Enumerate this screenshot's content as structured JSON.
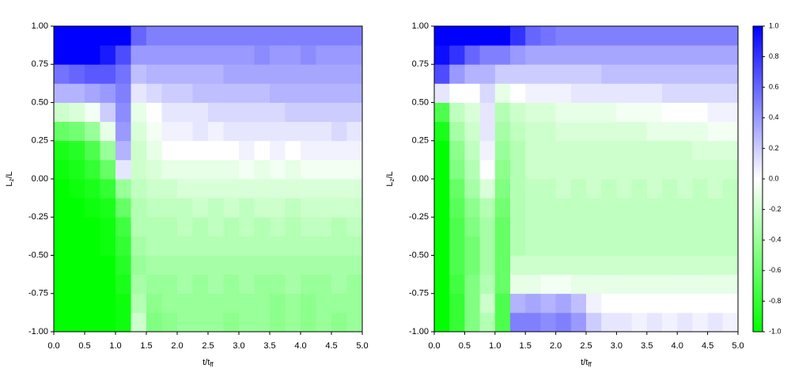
{
  "chart_data": [
    {
      "type": "heatmap",
      "xlabel": {
        "text": "t/t",
        "sub": "ff"
      },
      "ylabel": {
        "text": "L",
        "sub": "z",
        "tail": "/L"
      },
      "xbins": [
        0,
        0.25,
        0.5,
        0.75,
        1,
        1.25,
        1.5,
        1.75,
        2,
        2.25,
        2.5,
        2.75,
        3,
        3.25,
        3.5,
        3.75,
        4,
        4.25,
        4.5,
        4.75,
        5
      ],
      "ybins": [
        -1,
        -0.875,
        -0.75,
        -0.625,
        -0.5,
        -0.375,
        -0.25,
        -0.125,
        0,
        0.125,
        0.25,
        0.375,
        0.5,
        0.625,
        0.75,
        0.875,
        1
      ],
      "xlim": [
        0,
        5
      ],
      "ylim": [
        -1,
        1
      ],
      "xticks": [
        {
          "value": 0,
          "label": "0.0"
        },
        0.5,
        {
          "value": 1,
          "label": "1.0"
        },
        1.5,
        {
          "value": 2,
          "label": "2.0"
        },
        2.5,
        {
          "value": 3,
          "label": "3.0"
        },
        3.5,
        {
          "value": 4,
          "label": "4.0"
        },
        4.5,
        {
          "value": 5,
          "label": "5.0"
        }
      ],
      "yticks": [
        {
          "value": -1,
          "label": "-1.00"
        },
        -0.75,
        {
          "value": -0.5,
          "label": "-0.50"
        },
        -0.25,
        {
          "value": 0,
          "label": "0.00"
        },
        0.25,
        {
          "value": 0.5,
          "label": "0.50"
        },
        0.75,
        {
          "value": 1,
          "label": "1.00"
        }
      ],
      "colormap": [
        "#00ff00",
        "#ffffff",
        "#0000ff"
      ],
      "zlim": [
        -1,
        1
      ],
      "values": [
        [
          -1,
          -1,
          -1,
          -1,
          -0.95,
          -0.2,
          -0.5,
          -0.45,
          -0.4,
          -0.4,
          -0.4,
          -0.45,
          -0.4,
          -0.4,
          -0.45,
          -0.4,
          -0.45,
          -0.4,
          -0.45,
          -0.4
        ],
        [
          -1,
          -1,
          -1,
          -1,
          -0.95,
          -0.3,
          -0.45,
          -0.4,
          -0.4,
          -0.4,
          -0.4,
          -0.4,
          -0.4,
          -0.4,
          -0.45,
          -0.4,
          -0.45,
          -0.4,
          -0.4,
          -0.4
        ],
        [
          -1,
          -1,
          -1,
          -1,
          -0.9,
          -0.35,
          -0.4,
          -0.4,
          -0.35,
          -0.4,
          -0.35,
          -0.4,
          -0.35,
          -0.4,
          -0.4,
          -0.35,
          -0.4,
          -0.4,
          -0.35,
          -0.4
        ],
        [
          -1,
          -1,
          -1,
          -1,
          -0.85,
          -0.4,
          -0.35,
          -0.35,
          -0.35,
          -0.35,
          -0.35,
          -0.35,
          -0.35,
          -0.35,
          -0.35,
          -0.35,
          -0.35,
          -0.35,
          -0.35,
          -0.35
        ],
        [
          -1,
          -1,
          -1,
          -0.95,
          -0.8,
          -0.35,
          -0.3,
          -0.3,
          -0.3,
          -0.3,
          -0.3,
          -0.3,
          -0.3,
          -0.3,
          -0.3,
          -0.3,
          -0.3,
          -0.3,
          -0.3,
          -0.3
        ],
        [
          -1,
          -1,
          -1,
          -0.95,
          -0.75,
          -0.3,
          -0.3,
          -0.3,
          -0.25,
          -0.3,
          -0.25,
          -0.3,
          -0.25,
          -0.3,
          -0.25,
          -0.3,
          -0.25,
          -0.25,
          -0.3,
          -0.25
        ],
        [
          -1,
          -1,
          -0.95,
          -0.9,
          -0.6,
          -0.3,
          -0.25,
          -0.25,
          -0.25,
          -0.2,
          -0.25,
          -0.2,
          -0.25,
          -0.2,
          -0.2,
          -0.25,
          -0.2,
          -0.2,
          -0.2,
          -0.2
        ],
        [
          -1,
          -0.95,
          -0.9,
          -0.8,
          -0.4,
          -0.25,
          -0.2,
          -0.2,
          -0.15,
          -0.15,
          -0.15,
          -0.15,
          -0.15,
          -0.15,
          -0.15,
          -0.15,
          -0.15,
          -0.15,
          -0.15,
          -0.15
        ],
        [
          -0.95,
          -0.9,
          -0.8,
          -0.6,
          0.1,
          -0.2,
          -0.15,
          -0.1,
          -0.1,
          -0.1,
          -0.1,
          -0.1,
          -0.05,
          -0.1,
          -0.05,
          -0.1,
          -0.05,
          -0.05,
          -0.05,
          -0.05
        ],
        [
          -0.9,
          -0.85,
          -0.7,
          -0.4,
          0.3,
          -0.2,
          -0.1,
          0,
          0,
          0,
          0,
          0,
          0.05,
          0,
          0.05,
          0,
          0.05,
          0.05,
          0.05,
          0.05
        ],
        [
          -0.6,
          -0.55,
          -0.4,
          -0.1,
          0.4,
          -0.15,
          -0.05,
          0.05,
          0.05,
          0.1,
          0.05,
          0.1,
          0.1,
          0.1,
          0.1,
          0.1,
          0.1,
          0.1,
          0.15,
          0.1
        ],
        [
          -0.2,
          -0.15,
          -0.05,
          0.2,
          0.45,
          -0.1,
          0,
          0.1,
          0.1,
          0.1,
          0.15,
          0.15,
          0.15,
          0.15,
          0.15,
          0.2,
          0.2,
          0.2,
          0.2,
          0.2
        ],
        [
          0.3,
          0.3,
          0.35,
          0.4,
          0.5,
          0.1,
          0.15,
          0.2,
          0.2,
          0.25,
          0.25,
          0.25,
          0.25,
          0.25,
          0.3,
          0.3,
          0.3,
          0.3,
          0.3,
          0.3
        ],
        [
          0.55,
          0.6,
          0.65,
          0.65,
          0.55,
          0.25,
          0.3,
          0.3,
          0.3,
          0.3,
          0.3,
          0.35,
          0.35,
          0.35,
          0.35,
          0.35,
          0.35,
          0.35,
          0.35,
          0.35
        ],
        [
          1,
          1,
          1,
          0.9,
          0.7,
          0.4,
          0.4,
          0.4,
          0.4,
          0.4,
          0.4,
          0.4,
          0.4,
          0.45,
          0.4,
          0.4,
          0.45,
          0.4,
          0.4,
          0.4
        ],
        [
          1,
          1,
          1,
          1,
          1,
          0.6,
          0.5,
          0.5,
          0.5,
          0.5,
          0.5,
          0.5,
          0.5,
          0.5,
          0.5,
          0.5,
          0.5,
          0.5,
          0.5,
          0.5
        ]
      ]
    },
    {
      "type": "heatmap",
      "xlabel": {
        "text": "t/t",
        "sub": "ff"
      },
      "ylabel": {
        "text": "L",
        "sub": "z",
        "tail": "/L"
      },
      "xbins": [
        0,
        0.25,
        0.5,
        0.75,
        1,
        1.25,
        1.5,
        1.75,
        2,
        2.25,
        2.5,
        2.75,
        3,
        3.25,
        3.5,
        3.75,
        4,
        4.25,
        4.5,
        4.75,
        5
      ],
      "ybins": [
        -1,
        -0.875,
        -0.75,
        -0.625,
        -0.5,
        -0.375,
        -0.25,
        -0.125,
        0,
        0.125,
        0.25,
        0.375,
        0.5,
        0.625,
        0.75,
        0.875,
        1
      ],
      "xlim": [
        0,
        5
      ],
      "ylim": [
        -1,
        1
      ],
      "xticks": [
        {
          "value": 0,
          "label": "0.0"
        },
        0.5,
        {
          "value": 1,
          "label": "1.0"
        },
        1.5,
        {
          "value": 2,
          "label": "2.0"
        },
        2.5,
        {
          "value": 3,
          "label": "3.0"
        },
        3.5,
        {
          "value": 4,
          "label": "4.0"
        },
        4.5,
        {
          "value": 5,
          "label": "5.0"
        }
      ],
      "yticks": [
        {
          "value": -1,
          "label": "-1.00"
        },
        -0.75,
        {
          "value": -0.5,
          "label": "-0.50"
        },
        -0.25,
        {
          "value": 0,
          "label": "0.00"
        },
        0.25,
        {
          "value": 0.5,
          "label": "0.50"
        },
        0.75,
        {
          "value": 1,
          "label": "1.00"
        }
      ],
      "colormap": [
        "#00ff00",
        "#ffffff",
        "#0000ff"
      ],
      "zlim": [
        -1,
        1
      ],
      "colorbar": {
        "ticks": [
          {
            "value": -1,
            "label": "-1.0"
          },
          -0.8,
          -0.6,
          -0.4,
          -0.2,
          {
            "value": 0,
            "label": "0.0"
          },
          0.2,
          0.4,
          0.6,
          0.8,
          {
            "value": 1,
            "label": "1.0"
          }
        ]
      },
      "values": [
        [
          -1,
          -0.8,
          -0.5,
          -0.3,
          -0.7,
          0.5,
          0.5,
          0.45,
          0.5,
          0.4,
          0.2,
          0.1,
          0.1,
          0.05,
          0.1,
          0.05,
          0.1,
          0.05,
          0.1,
          0.05
        ],
        [
          -1,
          -0.8,
          -0.5,
          -0.2,
          -0.7,
          0.3,
          0.35,
          0.3,
          0.35,
          0.25,
          0.05,
          0,
          0,
          0,
          0,
          0,
          0,
          0,
          0,
          0
        ],
        [
          -1,
          -0.75,
          -0.5,
          -0.3,
          -0.6,
          -0.1,
          -0.1,
          -0.05,
          -0.05,
          -0.1,
          -0.1,
          -0.1,
          -0.1,
          -0.1,
          -0.1,
          -0.1,
          -0.1,
          -0.1,
          -0.1,
          -0.1
        ],
        [
          -1,
          -0.7,
          -0.55,
          -0.35,
          -0.6,
          -0.2,
          -0.2,
          -0.2,
          -0.2,
          -0.2,
          -0.2,
          -0.2,
          -0.2,
          -0.2,
          -0.2,
          -0.2,
          -0.2,
          -0.2,
          -0.2,
          -0.2
        ],
        [
          -1,
          -0.7,
          -0.55,
          -0.35,
          -0.6,
          -0.3,
          -0.25,
          -0.25,
          -0.25,
          -0.25,
          -0.25,
          -0.25,
          -0.25,
          -0.25,
          -0.25,
          -0.25,
          -0.25,
          -0.25,
          -0.25,
          -0.25
        ],
        [
          -1,
          -0.7,
          -0.5,
          -0.35,
          -0.6,
          -0.3,
          -0.25,
          -0.25,
          -0.25,
          -0.25,
          -0.25,
          -0.25,
          -0.25,
          -0.25,
          -0.25,
          -0.25,
          -0.25,
          -0.25,
          -0.25,
          -0.25
        ],
        [
          -1,
          -0.65,
          -0.45,
          -0.3,
          -0.55,
          -0.3,
          -0.25,
          -0.25,
          -0.25,
          -0.25,
          -0.25,
          -0.25,
          -0.25,
          -0.25,
          -0.25,
          -0.25,
          -0.25,
          -0.25,
          -0.25,
          -0.25
        ],
        [
          -1,
          -0.6,
          -0.35,
          -0.15,
          -0.5,
          -0.3,
          -0.25,
          -0.25,
          -0.2,
          -0.25,
          -0.2,
          -0.25,
          -0.2,
          -0.25,
          -0.2,
          -0.25,
          -0.2,
          -0.25,
          -0.2,
          -0.25
        ],
        [
          -1,
          -0.5,
          -0.3,
          0,
          -0.45,
          -0.3,
          -0.2,
          -0.2,
          -0.2,
          -0.2,
          -0.2,
          -0.2,
          -0.2,
          -0.2,
          -0.2,
          -0.2,
          -0.2,
          -0.2,
          -0.2,
          -0.2
        ],
        [
          -1,
          -0.45,
          -0.25,
          0.05,
          -0.4,
          -0.3,
          -0.2,
          -0.2,
          -0.2,
          -0.2,
          -0.2,
          -0.2,
          -0.2,
          -0.2,
          -0.2,
          -0.2,
          -0.2,
          -0.15,
          -0.15,
          -0.15
        ],
        [
          -0.9,
          -0.35,
          -0.2,
          0.1,
          -0.35,
          -0.25,
          -0.2,
          -0.2,
          -0.15,
          -0.15,
          -0.15,
          -0.15,
          -0.15,
          -0.15,
          -0.1,
          -0.1,
          -0.1,
          -0.1,
          -0.05,
          -0.05
        ],
        [
          -0.7,
          -0.25,
          -0.15,
          0.1,
          -0.3,
          -0.2,
          -0.15,
          -0.15,
          -0.1,
          -0.1,
          -0.1,
          -0.1,
          -0.05,
          -0.05,
          -0.05,
          0,
          0,
          0,
          0.05,
          0.05
        ],
        [
          0.1,
          0,
          0,
          0.15,
          -0.1,
          0,
          0.05,
          0.05,
          0.05,
          0.1,
          0.1,
          0.1,
          0.1,
          0.1,
          0.1,
          0.15,
          0.15,
          0.15,
          0.15,
          0.15
        ],
        [
          0.7,
          0.4,
          0.3,
          0.3,
          0.2,
          0.2,
          0.2,
          0.2,
          0.2,
          0.2,
          0.2,
          0.25,
          0.25,
          0.25,
          0.25,
          0.25,
          0.25,
          0.25,
          0.25,
          0.25
        ],
        [
          0.95,
          0.8,
          0.6,
          0.5,
          0.5,
          0.4,
          0.35,
          0.35,
          0.35,
          0.35,
          0.35,
          0.35,
          0.35,
          0.35,
          0.35,
          0.35,
          0.35,
          0.35,
          0.35,
          0.35
        ],
        [
          1,
          1,
          1,
          1,
          1,
          0.8,
          0.6,
          0.55,
          0.5,
          0.5,
          0.5,
          0.5,
          0.5,
          0.5,
          0.5,
          0.5,
          0.5,
          0.5,
          0.5,
          0.5
        ]
      ]
    }
  ]
}
